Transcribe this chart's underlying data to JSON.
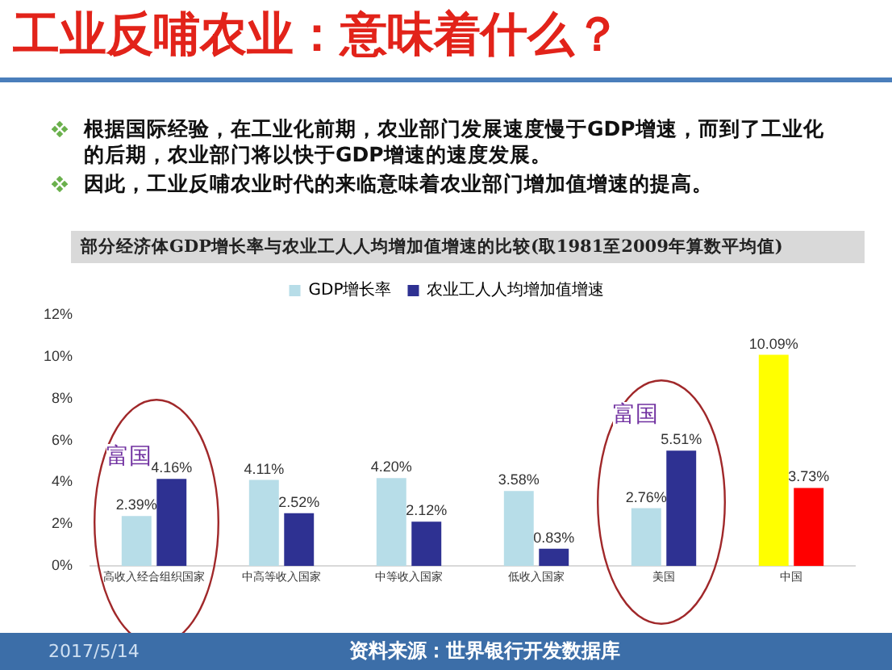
{
  "chart_data": {
    "type": "bar",
    "title": "部分经济体GDP增长率与农业工人人均增加值增速的比较(取1981至2009年算数平均值)",
    "subtitle": "工业反哺农业：意味着什么？",
    "categories": [
      "高收入经合组织国家",
      "中高等收入国家",
      "中等收入国家",
      "低收入国家",
      "美国",
      "中国"
    ],
    "series": [
      {
        "name": "GDP增长率",
        "color": "#b7dde8",
        "colors": [
          "#b7dde8",
          "#b7dde8",
          "#b7dde8",
          "#b7dde8",
          "#b7dde8",
          "#ffff00"
        ],
        "values": [
          2.39,
          4.11,
          4.2,
          3.58,
          2.76,
          10.09
        ],
        "value_labels": [
          "2.39%",
          "4.11%",
          "4.20%",
          "3.58%",
          "2.76%",
          "10.09%"
        ]
      },
      {
        "name": "农业工人人均增加值增速",
        "color": "#2e3192",
        "colors": [
          "#2e3192",
          "#2e3192",
          "#2e3192",
          "#2e3192",
          "#2e3192",
          "#ff0000"
        ],
        "values": [
          4.16,
          2.52,
          2.12,
          0.83,
          5.51,
          3.73
        ],
        "value_labels": [
          "4.16%",
          "2.52%",
          "2.12%",
          "0.83%",
          "5.51%",
          "3.73%"
        ]
      }
    ],
    "ylim": [
      0,
      12
    ],
    "yticks": [
      {
        "value": 0,
        "label": "0%"
      },
      {
        "value": 2,
        "label": "2%"
      },
      {
        "value": 4,
        "label": "4%"
      },
      {
        "value": 6,
        "label": "6%"
      },
      {
        "value": 8,
        "label": "8%"
      },
      {
        "value": 10,
        "label": "10%"
      },
      {
        "value": 12,
        "label": "12%"
      }
    ],
    "grid": false,
    "legend": "top",
    "annotations": [
      "根据国际经验，在工业化前期，农业部门发展速度慢于GDP增速，而到了工业化的后期，农业部门将以快于GDP增速的速度发展。",
      "因此，工业反哺农业时代的来临意味着农业部门增加值增速的提高。",
      "富国",
      "富国",
      "2017/5/14",
      "资料来源：世界银行开发数据库"
    ]
  }
}
